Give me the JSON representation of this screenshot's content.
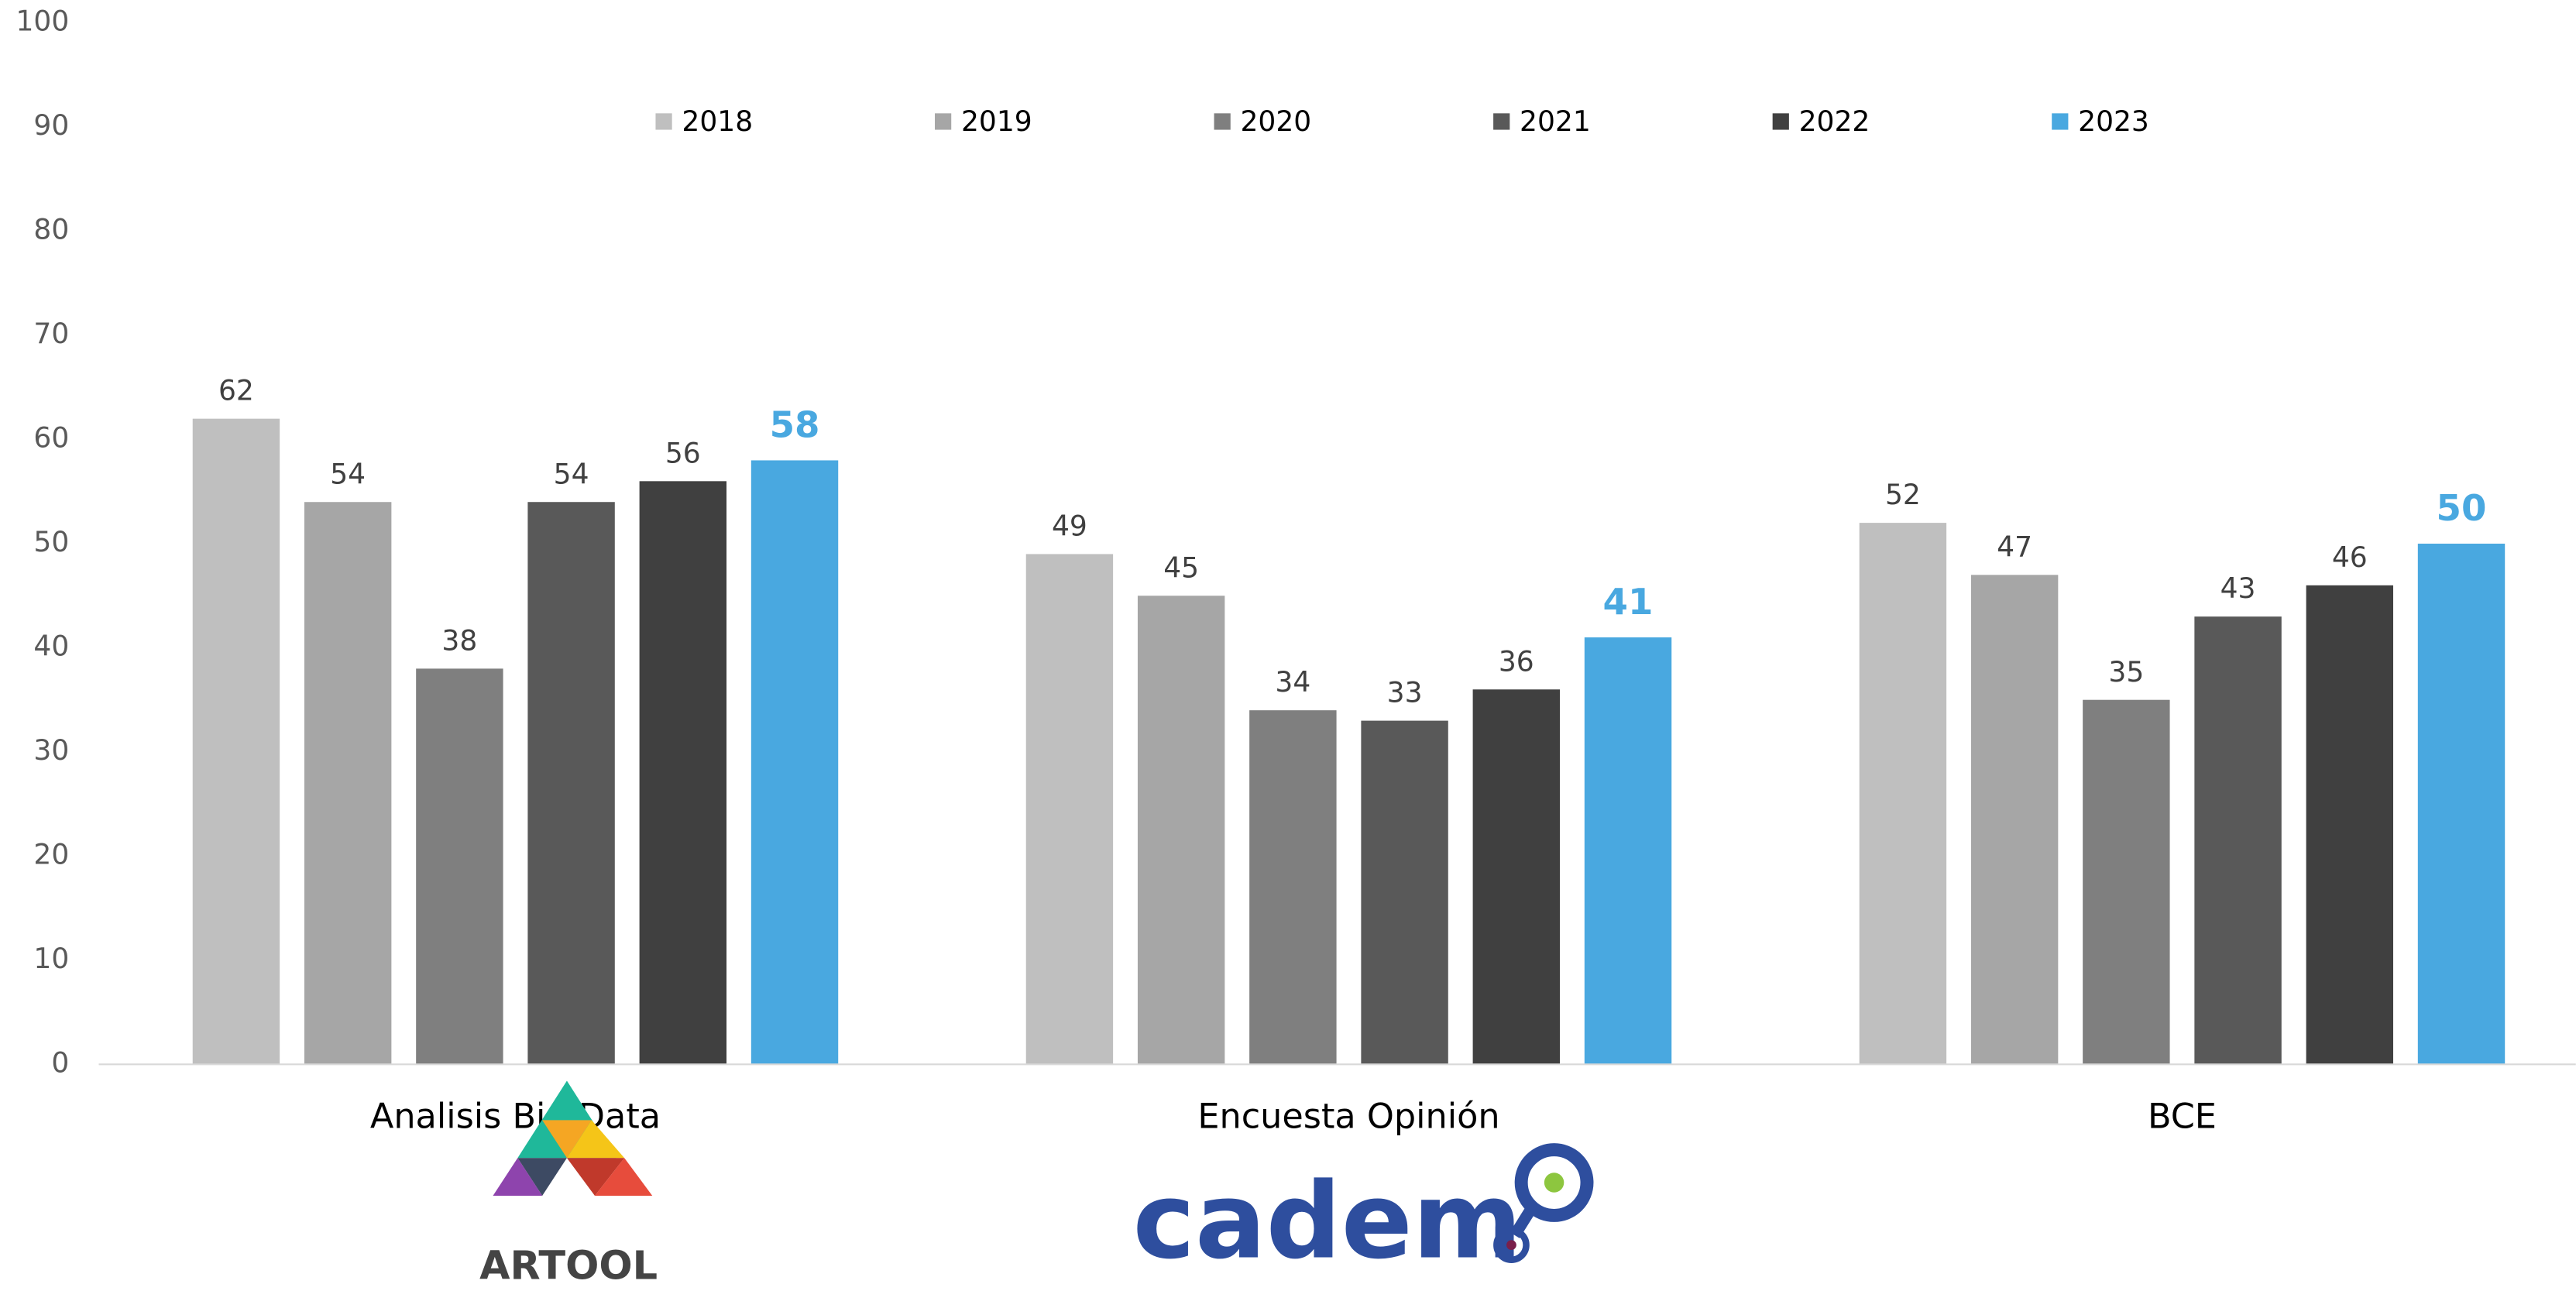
{
  "chart_data": {
    "type": "bar",
    "categories": [
      "Analisis Big Data",
      "Encuesta Opinión",
      "BCE"
    ],
    "series": [
      {
        "name": "2018",
        "color": "#bfbfbf",
        "values": [
          62,
          49,
          52
        ]
      },
      {
        "name": "2019",
        "color": "#a6a6a6",
        "values": [
          54,
          45,
          47
        ]
      },
      {
        "name": "2020",
        "color": "#7f7f7f",
        "values": [
          38,
          34,
          35
        ]
      },
      {
        "name": "2021",
        "color": "#595959",
        "values": [
          54,
          33,
          43
        ]
      },
      {
        "name": "2022",
        "color": "#404040",
        "values": [
          56,
          36,
          46
        ]
      },
      {
        "name": "2023",
        "color": "#49a8e0",
        "values": [
          58,
          41,
          50
        ]
      }
    ],
    "ylim": [
      0,
      100
    ],
    "yticks": [
      0,
      10,
      20,
      30,
      40,
      50,
      60,
      70,
      80,
      90,
      100
    ],
    "grid": false,
    "legend": "top"
  },
  "logos": [
    "ARTOOL",
    "cadem"
  ]
}
